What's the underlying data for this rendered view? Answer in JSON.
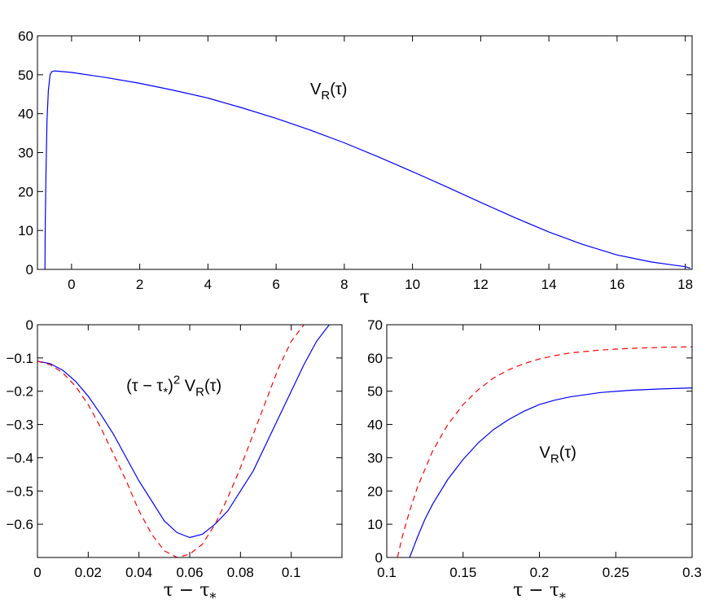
{
  "chart_data": [
    {
      "id": "top",
      "type": "line",
      "xlim": [
        -1,
        18.2
      ],
      "ylim": [
        0,
        60
      ],
      "xticks": [
        0,
        2,
        4,
        6,
        8,
        10,
        12,
        14,
        16,
        18
      ],
      "yticks": [
        0,
        10,
        20,
        30,
        40,
        50,
        60
      ],
      "xtick_labels": [
        "0",
        "2",
        "4",
        "6",
        "8",
        "10",
        "12",
        "14",
        "16",
        "18"
      ],
      "ytick_labels": [
        "0",
        "10",
        "20",
        "30",
        "40",
        "50",
        "60"
      ],
      "xlabel": "τ",
      "ylabel": "",
      "grid": false,
      "annotations": [
        {
          "text_main": "V",
          "text_sub": "R",
          "text_tail": "(τ)",
          "x": 7.0,
          "y": 45
        }
      ],
      "series": [
        {
          "style": "solid",
          "color": "#0000ff",
          "x": [
            -0.78,
            -0.77,
            -0.75,
            -0.72,
            -0.68,
            -0.63,
            -0.58,
            -0.5,
            -0.4,
            0,
            1,
            2,
            3,
            4,
            5,
            6,
            7,
            8,
            9,
            10,
            11,
            12,
            13,
            14,
            15,
            16,
            17,
            17.5,
            18,
            18.15
          ],
          "y": [
            0,
            12,
            25,
            38,
            46,
            50,
            50.8,
            51,
            50.9,
            50.6,
            49.3,
            47.8,
            46.0,
            44.0,
            41.5,
            38.8,
            35.8,
            32.5,
            28.9,
            25.1,
            21.2,
            17.2,
            13.3,
            9.6,
            6.4,
            3.7,
            1.9,
            1.3,
            0.7,
            0.3
          ]
        }
      ]
    },
    {
      "id": "bottom-left",
      "type": "line",
      "xlim": [
        0,
        0.12
      ],
      "ylim": [
        -0.7,
        0
      ],
      "xticks": [
        0,
        0.02,
        0.04,
        0.06,
        0.08,
        0.1
      ],
      "yticks": [
        -0.6,
        -0.5,
        -0.4,
        -0.3,
        -0.2,
        -0.1,
        0
      ],
      "xtick_labels": [
        "0",
        "0.02",
        "0.04",
        "0.06",
        "0.08",
        "0.1"
      ],
      "ytick_labels": [
        "−0.6",
        "−0.5",
        "−0.4",
        "−0.3",
        "−0.2",
        "−0.1",
        "0"
      ],
      "xlabel_main": "τ − τ",
      "xlabel_sub": "*",
      "ylabel": "",
      "grid": false,
      "annotations": [
        {
          "text_prefix": "(τ − τ",
          "text_sub1": "*",
          "text_mid": ")",
          "text_sup": "2",
          "text_main": " V",
          "text_sub": "R",
          "text_tail": "(τ)",
          "x": 0.035,
          "y": -0.2
        }
      ],
      "series": [
        {
          "style": "solid",
          "color": "#0000ff",
          "x": [
            0,
            0.005,
            0.01,
            0.015,
            0.02,
            0.025,
            0.03,
            0.035,
            0.04,
            0.045,
            0.05,
            0.055,
            0.06,
            0.065,
            0.07,
            0.075,
            0.08,
            0.085,
            0.09,
            0.095,
            0.1,
            0.105,
            0.11,
            0.115
          ],
          "y": [
            -0.11,
            -0.117,
            -0.137,
            -0.17,
            -0.215,
            -0.27,
            -0.33,
            -0.4,
            -0.47,
            -0.53,
            -0.59,
            -0.625,
            -0.64,
            -0.63,
            -0.6,
            -0.56,
            -0.5,
            -0.44,
            -0.36,
            -0.28,
            -0.2,
            -0.12,
            -0.05,
            0
          ]
        },
        {
          "style": "dashed",
          "color": "#ff0000",
          "x": [
            0,
            0.005,
            0.01,
            0.015,
            0.02,
            0.025,
            0.03,
            0.035,
            0.04,
            0.045,
            0.05,
            0.055,
            0.06,
            0.065,
            0.07,
            0.075,
            0.08,
            0.085,
            0.09,
            0.095,
            0.1,
            0.105
          ],
          "y": [
            -0.11,
            -0.12,
            -0.145,
            -0.185,
            -0.24,
            -0.31,
            -0.39,
            -0.47,
            -0.56,
            -0.63,
            -0.68,
            -0.7,
            -0.69,
            -0.66,
            -0.6,
            -0.52,
            -0.43,
            -0.33,
            -0.23,
            -0.13,
            -0.05,
            0
          ]
        }
      ]
    },
    {
      "id": "bottom-right",
      "type": "line",
      "xlim": [
        0.1,
        0.3
      ],
      "ylim": [
        0,
        70
      ],
      "xticks": [
        0.1,
        0.15,
        0.2,
        0.25,
        0.3
      ],
      "yticks": [
        0,
        10,
        20,
        30,
        40,
        50,
        60,
        70
      ],
      "xtick_labels": [
        "0.1",
        "0.15",
        "0.2",
        "0.25",
        "0.3"
      ],
      "ytick_labels": [
        "0",
        "10",
        "20",
        "30",
        "40",
        "50",
        "60",
        "70"
      ],
      "xlabel_main": "τ − τ",
      "xlabel_sub": "*",
      "ylabel": "",
      "grid": false,
      "annotations": [
        {
          "text_main": "V",
          "text_sub": "R",
          "text_tail": "(τ)",
          "x": 0.2,
          "y": 30
        }
      ],
      "series": [
        {
          "style": "solid",
          "color": "#0000ff",
          "x": [
            0.115,
            0.12,
            0.125,
            0.13,
            0.14,
            0.15,
            0.16,
            0.17,
            0.18,
            0.19,
            0.2,
            0.21,
            0.22,
            0.24,
            0.26,
            0.28,
            0.3
          ],
          "y": [
            0,
            6,
            11.5,
            16,
            23.5,
            29.5,
            34.5,
            38.5,
            41.5,
            44,
            46,
            47.3,
            48.3,
            49.6,
            50.3,
            50.7,
            51
          ]
        },
        {
          "style": "dashed",
          "color": "#ff0000",
          "x": [
            0.107,
            0.11,
            0.115,
            0.12,
            0.13,
            0.14,
            0.15,
            0.16,
            0.17,
            0.18,
            0.19,
            0.2,
            0.21,
            0.22,
            0.24,
            0.26,
            0.28,
            0.3
          ],
          "y": [
            0,
            6,
            14,
            21,
            32,
            40,
            46,
            50.5,
            54,
            56.5,
            58.3,
            59.7,
            60.7,
            61.5,
            62.4,
            62.9,
            63.2,
            63.4
          ]
        }
      ]
    }
  ]
}
